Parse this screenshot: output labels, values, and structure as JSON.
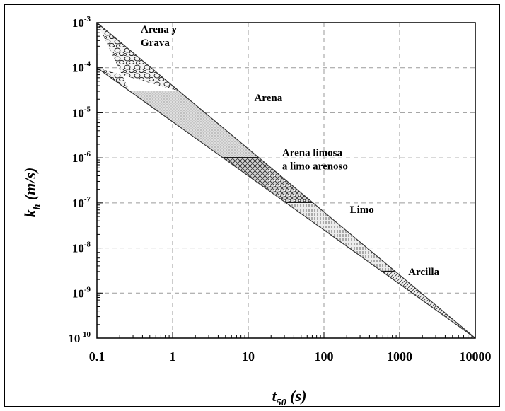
{
  "chart_data": {
    "type": "area",
    "x_scale": "log",
    "y_scale": "log",
    "xlabel": {
      "main": "t",
      "sub": "50",
      "rest": " (s)"
    },
    "ylabel": {
      "main": "k",
      "sub": "h",
      "rest": " (m/s)"
    },
    "xlim": [
      0.1,
      10000
    ],
    "ylim": [
      1e-10,
      0.001
    ],
    "x_ticks": [
      {
        "value": 0.1,
        "label": "0.1"
      },
      {
        "value": 1,
        "label": "1"
      },
      {
        "value": 10,
        "label": "10"
      },
      {
        "value": 100,
        "label": "100"
      },
      {
        "value": 1000,
        "label": "1000"
      },
      {
        "value": 10000,
        "label": "10000"
      }
    ],
    "y_ticks": [
      {
        "value": 0.001,
        "base": "10",
        "exp": "-3"
      },
      {
        "value": 0.0001,
        "base": "10",
        "exp": "-4"
      },
      {
        "value": 1e-05,
        "base": "10",
        "exp": "-5"
      },
      {
        "value": 1e-06,
        "base": "10",
        "exp": "-6"
      },
      {
        "value": 1e-07,
        "base": "10",
        "exp": "-7"
      },
      {
        "value": 1e-08,
        "base": "10",
        "exp": "-8"
      },
      {
        "value": 1e-09,
        "base": "10",
        "exp": "-9"
      },
      {
        "value": 1e-10,
        "base": "10",
        "exp": "-10"
      }
    ],
    "grid": "dashed",
    "envelope": {
      "upper": [
        [
          0.1,
          0.001
        ],
        [
          10000,
          1e-10
        ]
      ],
      "lower": [
        [
          0.1,
          0.0001
        ],
        [
          10000,
          1e-10
        ]
      ]
    },
    "zones": [
      {
        "name": "Arena y Grava",
        "k_top": 0.001,
        "k_bottom": 3e-05,
        "pattern": "gravel"
      },
      {
        "name": "Arena",
        "k_top": 3e-05,
        "k_bottom": 1e-06,
        "pattern": "stipple"
      },
      {
        "name": "Arena limosa a limo arenoso",
        "k_top": 1e-06,
        "k_bottom": 1e-07,
        "pattern": "crosshatch"
      },
      {
        "name": "Limo",
        "k_top": 1e-07,
        "k_bottom": 3e-09,
        "pattern": "vlines"
      },
      {
        "name": "Arcilla",
        "k_top": 3e-09,
        "k_bottom": 1e-10,
        "pattern": "diag"
      }
    ],
    "labels": [
      {
        "lines": [
          "Arena y",
          "Grava"
        ],
        "x": 0.38,
        "y": 0.0006
      },
      {
        "lines": [
          "Arena"
        ],
        "x": 12,
        "y": 1.8e-05
      },
      {
        "lines": [
          "Arena limosa",
          "a limo arenoso"
        ],
        "x": 28,
        "y": 1.1e-06
      },
      {
        "lines": [
          "Limo"
        ],
        "x": 220,
        "y": 6e-08
      },
      {
        "lines": [
          "Arcilla"
        ],
        "x": 1300,
        "y": 2.5e-09
      }
    ],
    "colors": {
      "envelope": "#333333",
      "grid": "#9a9a9a",
      "fill": "#e4e4e4"
    }
  }
}
